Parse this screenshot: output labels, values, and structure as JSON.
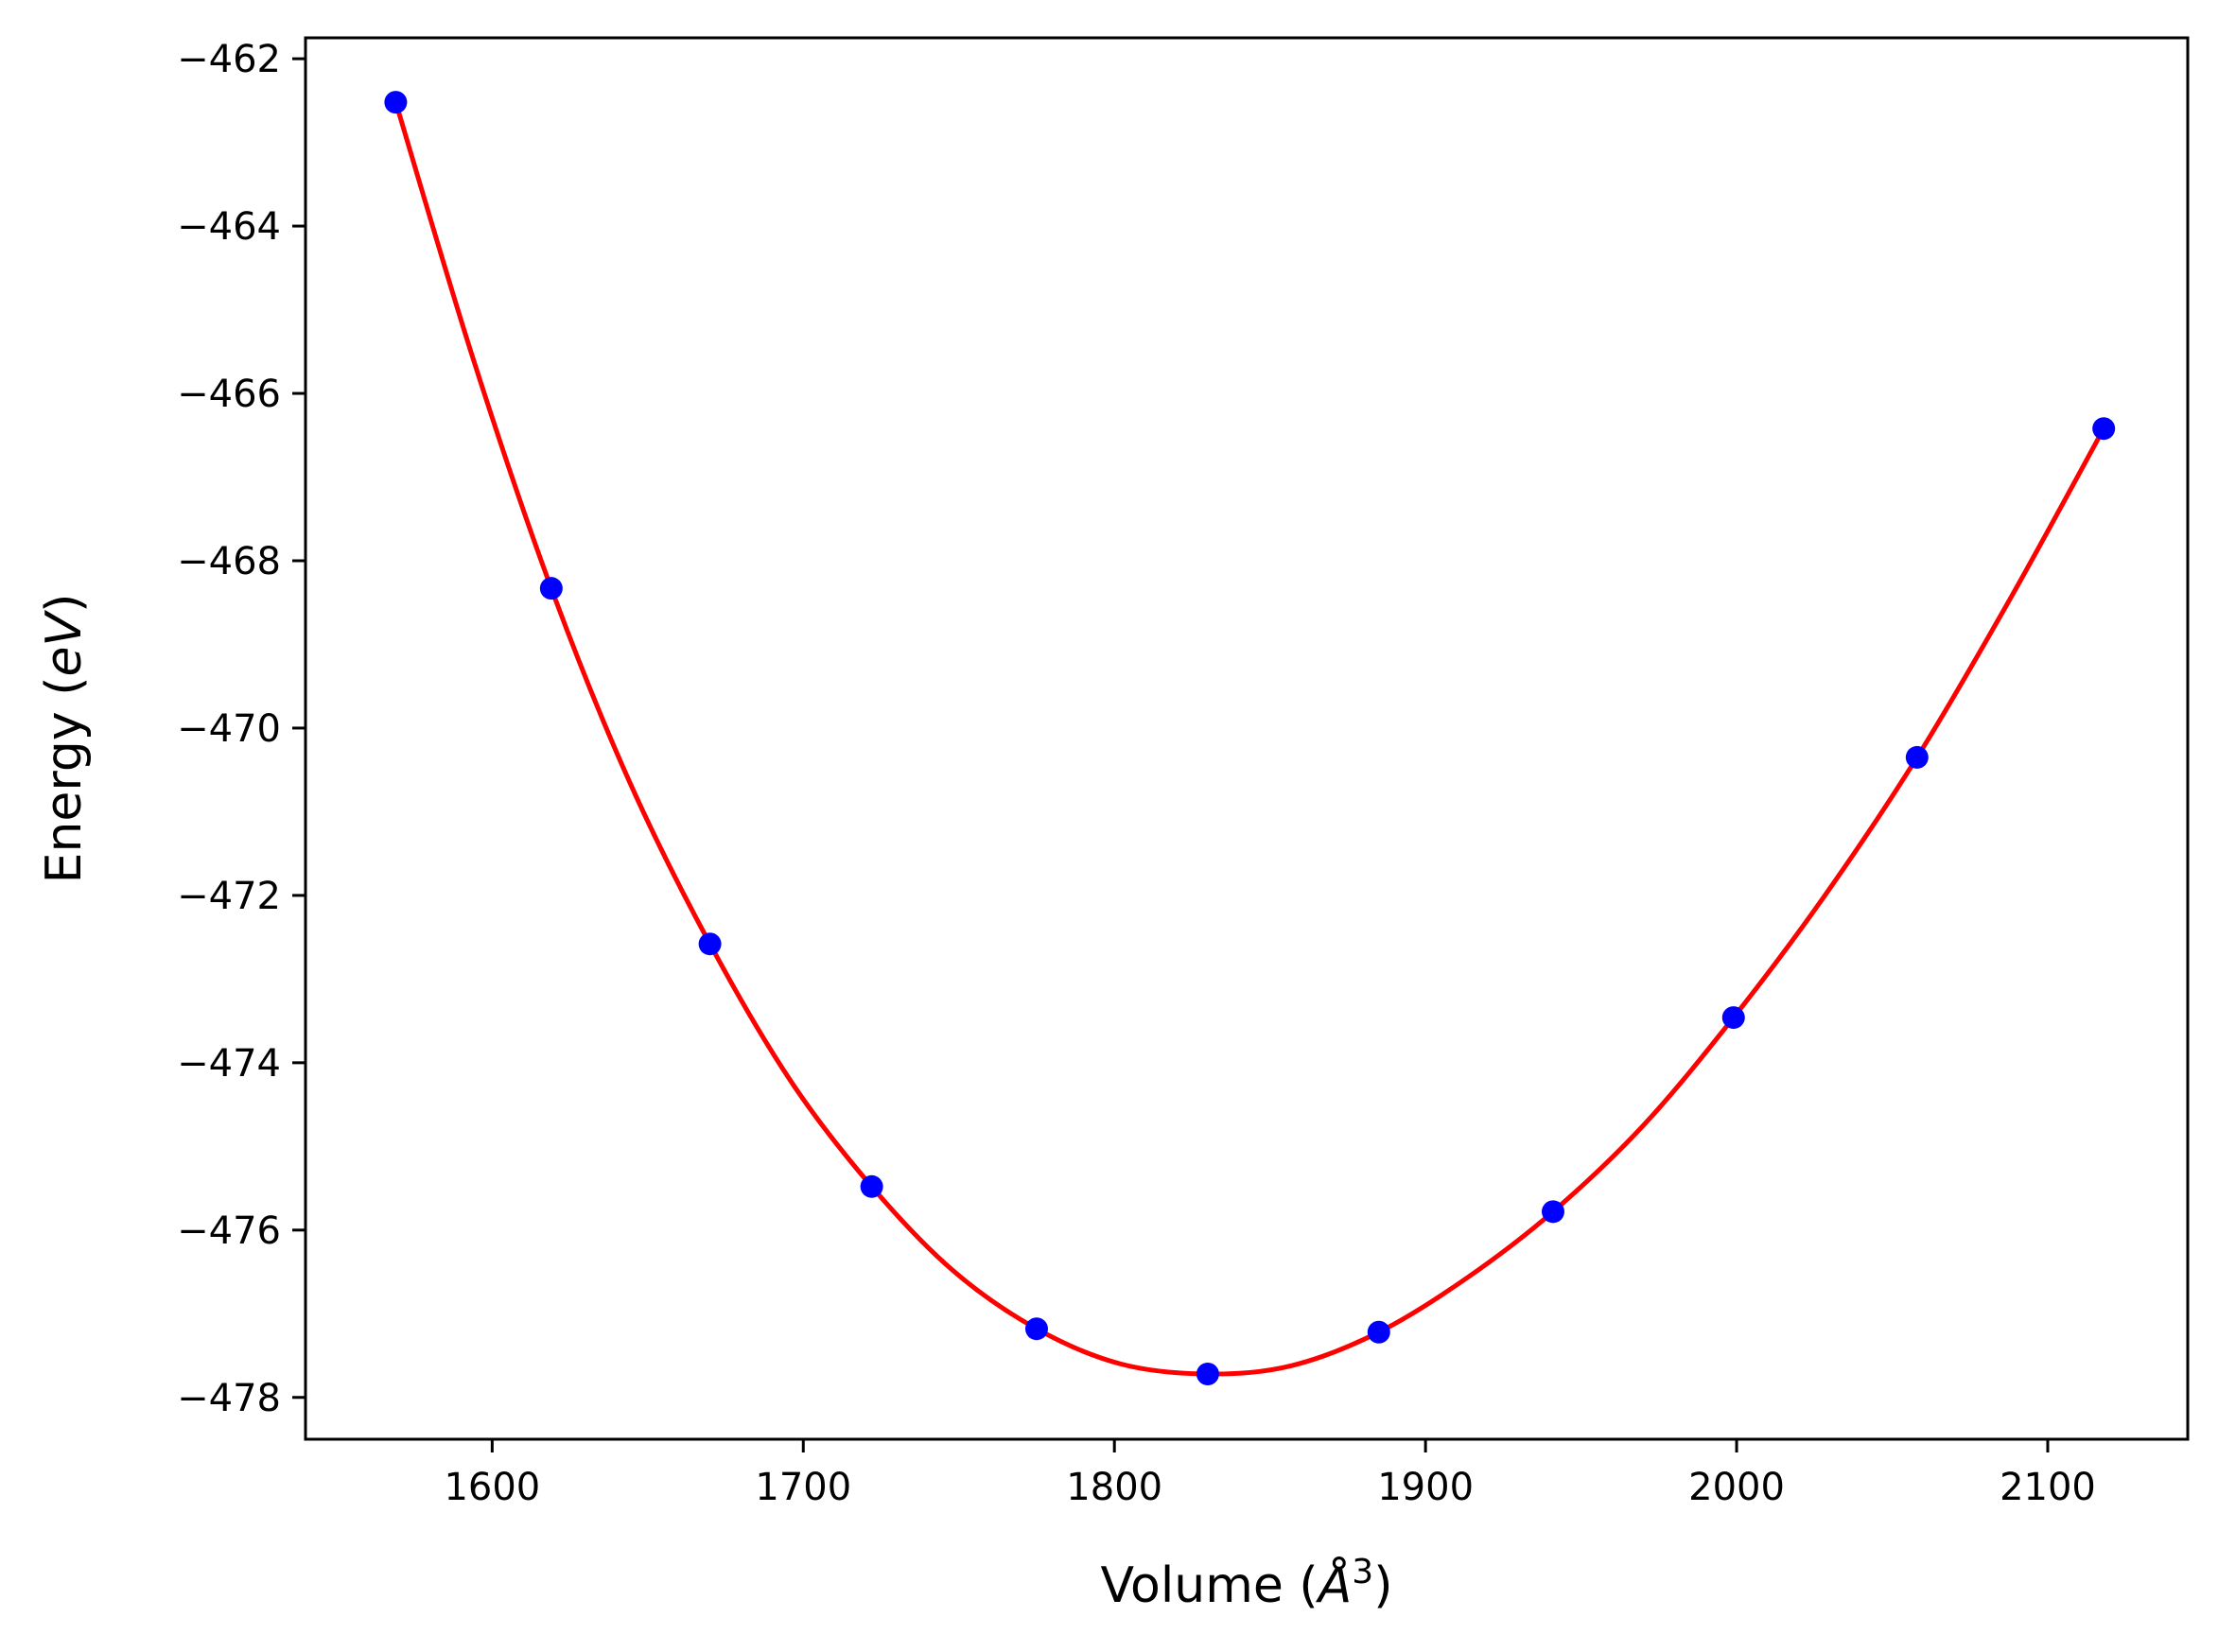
{
  "chart_data": {
    "type": "scatter",
    "title": "",
    "xlabel": {
      "prefix": "Volume (",
      "symbol": "Å",
      "sup": "3",
      "suffix": ")"
    },
    "ylabel": {
      "prefix": "Energy (",
      "unit": "eV",
      "suffix": ")"
    },
    "xlim": [
      1540,
      2145
    ],
    "ylim": [
      -478.5,
      -461.75
    ],
    "xticks": [
      1600,
      1700,
      1800,
      1900,
      2000,
      2100
    ],
    "yticks": [
      -462,
      -464,
      -466,
      -468,
      -470,
      -472,
      -474,
      -476,
      -478
    ],
    "xtick_labels": [
      "1600",
      "1700",
      "1800",
      "1900",
      "2000",
      "2100"
    ],
    "ytick_labels": [
      "−462",
      "−464",
      "−466",
      "−468",
      "−470",
      "−472",
      "−474",
      "−476",
      "−478"
    ],
    "grid": false,
    "legend": "none",
    "series": [
      {
        "kind": "points",
        "color": "#0000ff",
        "x": [
          1569,
          1619,
          1670,
          1722,
          1775,
          1830,
          1885,
          1941,
          1999,
          2058,
          2118
        ],
        "y": [
          -462.52,
          -468.33,
          -472.58,
          -475.48,
          -477.18,
          -477.72,
          -477.22,
          -475.78,
          -473.46,
          -470.35,
          -466.42
        ]
      },
      {
        "kind": "fit-curve",
        "color": "#ff0000",
        "x": [
          1569,
          1594,
          1619,
          1644,
          1670,
          1696,
          1722,
          1748,
          1775,
          1802,
          1830,
          1857,
          1885,
          1913,
          1941,
          1970,
          1999,
          2028,
          2058,
          2088,
          2118
        ],
        "y": [
          -462.52,
          -465.6,
          -468.33,
          -470.63,
          -472.58,
          -474.22,
          -475.48,
          -476.48,
          -477.18,
          -477.6,
          -477.72,
          -477.62,
          -477.22,
          -476.58,
          -475.78,
          -474.75,
          -473.46,
          -472.02,
          -470.35,
          -468.45,
          -466.42
        ]
      }
    ]
  }
}
